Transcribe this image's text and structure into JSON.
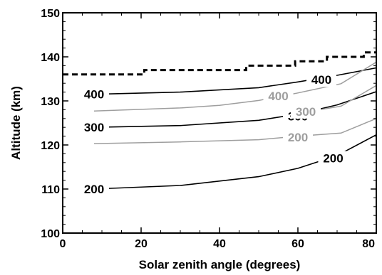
{
  "chart_data": {
    "type": "line",
    "xlabel": "Solar zenith angle (degrees)",
    "ylabel": "Altitude (km)",
    "xlim": [
      0,
      80
    ],
    "ylim": [
      100,
      150
    ],
    "xticks": [
      0,
      20,
      40,
      60,
      80
    ],
    "yticks": [
      100,
      110,
      120,
      130,
      140,
      150
    ],
    "xtick_labels": [
      "0",
      "20",
      "40",
      "60",
      "80"
    ],
    "ytick_labels": [
      "100",
      "110",
      "120",
      "130",
      "140",
      "150"
    ],
    "colors": {
      "black": "#000000",
      "gray": "#9e9e9e"
    },
    "series": [
      {
        "color": "black",
        "style": "dashed",
        "label": "",
        "points": [
          [
            0,
            136
          ],
          [
            20.8,
            136
          ],
          [
            20.8,
            137
          ],
          [
            46.8,
            137
          ],
          [
            46.8,
            138
          ],
          [
            59.3,
            138
          ],
          [
            59.3,
            139
          ],
          [
            67.4,
            139
          ],
          [
            67.4,
            140
          ],
          [
            76.8,
            140
          ],
          [
            76.8,
            141
          ],
          [
            80,
            141
          ]
        ]
      },
      {
        "color": "black",
        "style": "solid",
        "label": "400",
        "points": [
          [
            8,
            131.5
          ],
          [
            30,
            132
          ],
          [
            50,
            133
          ],
          [
            60,
            134.3
          ],
          [
            70,
            135.8
          ],
          [
            80,
            137.5
          ]
        ]
      },
      {
        "color": "black",
        "style": "solid",
        "label": "300",
        "points": [
          [
            8,
            124
          ],
          [
            30,
            124.4
          ],
          [
            50,
            125.6
          ],
          [
            60,
            127
          ],
          [
            70,
            129.1
          ],
          [
            80,
            132.1
          ]
        ]
      },
      {
        "color": "black",
        "style": "solid",
        "label": "200",
        "points": [
          [
            8,
            110
          ],
          [
            30,
            110.8
          ],
          [
            50,
            112.8
          ],
          [
            60,
            114.7
          ],
          [
            70,
            117.6
          ],
          [
            80,
            122.3
          ]
        ]
      },
      {
        "color": "gray",
        "style": "solid",
        "label": "400",
        "points": [
          [
            8,
            127.7
          ],
          [
            30,
            128.4
          ],
          [
            40,
            129
          ],
          [
            50,
            130.1
          ],
          [
            60,
            131.8
          ],
          [
            71,
            133.9
          ],
          [
            80,
            138.8
          ]
        ]
      },
      {
        "color": "gray",
        "style": "solid",
        "label": "300",
        "points": [
          [
            8,
            120.3
          ],
          [
            30,
            120.7
          ],
          [
            50,
            121.2
          ],
          [
            60,
            122
          ],
          [
            71,
            122.7
          ],
          [
            80,
            126
          ]
        ]
      },
      {
        "color": "gray",
        "style": "solid",
        "label": "200",
        "points": [
          [
            60,
            127.2
          ],
          [
            71,
            128.8
          ],
          [
            80,
            133.5
          ]
        ]
      }
    ],
    "contour_labels": [
      {
        "text": "400",
        "color": "black",
        "x": 8,
        "y": 131.5
      },
      {
        "text": "300",
        "color": "black",
        "x": 8,
        "y": 124
      },
      {
        "text": "200",
        "color": "black",
        "x": 8,
        "y": 110
      },
      {
        "text": "400",
        "color": "black",
        "x": 66,
        "y": 134.8
      },
      {
        "text": "300",
        "color": "black",
        "x": 60,
        "y": 126.5
      },
      {
        "text": "200",
        "color": "black",
        "x": 69,
        "y": 117
      },
      {
        "text": "400",
        "color": "gray",
        "x": 55,
        "y": 131.1
      },
      {
        "text": "300",
        "color": "gray",
        "x": 62,
        "y": 127.6
      },
      {
        "text": "200",
        "color": "gray",
        "x": 60,
        "y": 121.8
      }
    ]
  }
}
